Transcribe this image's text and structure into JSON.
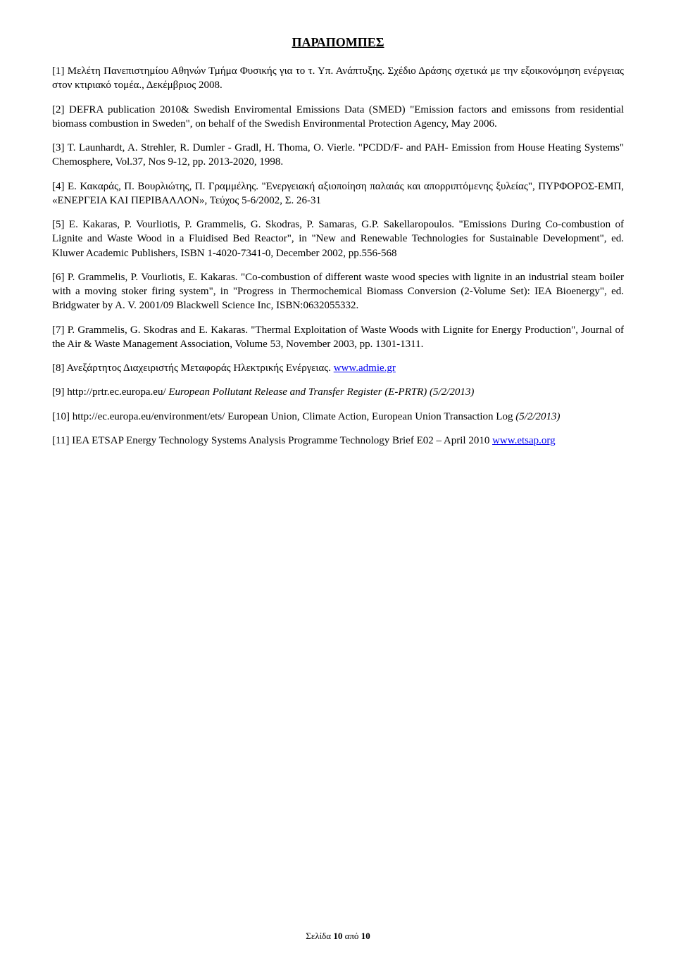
{
  "title": "ΠΑΡΑΠΟΜΠΕΣ",
  "references": {
    "r1": "[1] Μελέτη Πανεπιστημίου Αθηνών Τμήμα Φυσικής για το τ. Υπ. Ανάπτυξης. Σχέδιο Δράσης σχετικά με την εξοικονόμηση ενέργειας στον κτιριακό τομέα., Δεκέμβριος 2008.",
    "r2": "[2] DEFRA publication 2010& Swedish Enviromental Emissions Data (SMED) \"Emission factors and emissons from residential biomass combustion in Sweden\", on behalf of the Swedish Environmental Protection Agency, May 2006.",
    "r3": "[3] T. Launhardt, A. Strehler, R. Dumler - Gradl, H. Thoma, O. Vierle. \"PCDD/F- and PAH- Emission from House Heating Systems\" Chemosphere, Vol.37, Nos 9-12, pp. 2013-2020, 1998.",
    "r4": "[4] Ε. Κακαράς, Π. Βουρλιώτης, Π. Γραμμέλης. \"Ενεργειακή αξιοποίηση παλαιάς και απορριπτόμενης ξυλείας\", ΠΥΡΦΟΡΟΣ-ΕΜΠ, «ΕΝΕΡΓΕΙΑ ΚΑΙ ΠΕΡΙΒΑΛΛΟΝ», Τεύχος 5-6/2002, Σ. 26-31",
    "r5": "[5] E. Kakaras, P. Vourliotis, P. Grammelis, G. Skodras, P. Samaras, G.P. Sakellaropoulos. \"Emissions During Co-combustion of Lignite and Waste Wood in a Fluidised Bed Reactor\", in \"New and Renewable Technologies for Sustainable Development\", ed. Kluwer Academic Publishers, ISBN 1-4020-7341-0, December 2002, pp.556-568",
    "r6": "[6] P. Grammelis, P. Vourliotis, E. Kakaras. \"Co-combustion of different waste wood species with lignite in an industrial steam boiler with a moving stoker firing system\", in \"Progress in Thermochemical Biomass Conversion (2-Volume Set): IEA Bioenergy\", ed. Bridgwater by A. V. 2001/09 Blackwell Science Inc, ISBN:0632055332.",
    "r7": "[7] P. Grammelis, G. Skodras and E. Kakaras. \"Thermal Exploitation of Waste Woods with Lignite for Energy Production\", Journal of the Air & Waste Management Association, Volume 53, November 2003, pp. 1301-1311.",
    "r8_text": "[8] Ανεξάρτητος Διαχειριστής Μεταφοράς Ηλεκτρικής Ενέργειας. ",
    "r8_link": "www.admie.gr",
    "r9_text": "[9] http://prtr.ec.europa.eu/ ",
    "r9_italic": "European Pollutant Release and Transfer Register (E-PRTR",
    "r9_after": ") (5/2/2013)",
    "r10_text": "[10] http://ec.europa.eu/environment/ets/ ",
    "r10_bold": "European Union, Climate Action, European Union Transaction Log",
    "r10_after": " (5/2/2013)",
    "r11_text": "[11] IEA ETSAP Energy Technology Systems Analysis Programme Technology Brief E02 – April 2010 ",
    "r11_link": "www.etsap.org"
  },
  "footer": {
    "label_before": "Σελίδα ",
    "current": "10",
    "label_mid": " από ",
    "total": "10"
  }
}
